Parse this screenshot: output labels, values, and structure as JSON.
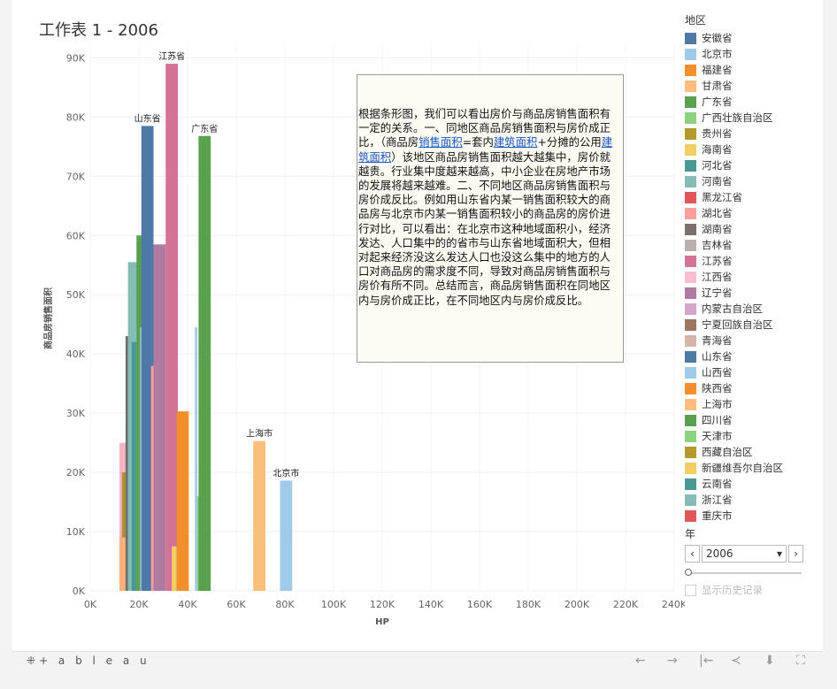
{
  "title": "工作表 1 - 2006",
  "chart_data": {
    "type": "bar",
    "xlabel": "HP",
    "ylabel": "商品房销售面积",
    "xlim": [
      0,
      240000
    ],
    "ylim": [
      0,
      92000
    ],
    "x_ticks": [
      "0K",
      "20K",
      "40K",
      "60K",
      "80K",
      "100K",
      "120K",
      "140K",
      "160K",
      "180K",
      "200K",
      "220K",
      "240K"
    ],
    "y_ticks": [
      "0K",
      "10K",
      "20K",
      "30K",
      "40K",
      "50K",
      "60K",
      "70K",
      "80K",
      "90K"
    ],
    "x_tick_values": [
      0,
      20000,
      40000,
      60000,
      80000,
      100000,
      120000,
      140000,
      160000,
      180000,
      200000,
      220000,
      240000
    ],
    "y_tick_values": [
      0,
      10000,
      20000,
      30000,
      40000,
      50000,
      60000,
      70000,
      80000,
      90000
    ],
    "grid": true,
    "bars": [
      {
        "name": "湖北省",
        "x0": 12000,
        "x1": 15000,
        "value": 25000,
        "color": "#f4b6c2"
      },
      {
        "name": "贵州省",
        "x0": 13000,
        "x1": 18000,
        "value": 20000,
        "color": "#b09235"
      },
      {
        "name": "陕西省",
        "x0": 12000,
        "x1": 17500,
        "value": 9000,
        "color": "#f9b07a"
      },
      {
        "name": "湖南省",
        "x0": 14500,
        "x1": 16000,
        "value": 43000,
        "color": "#6f6f6f"
      },
      {
        "name": "浙江省",
        "x0": 15500,
        "x1": 20500,
        "value": 55500,
        "color": "#86bcb6"
      },
      {
        "name": "广西壮族自治区",
        "x0": 17500,
        "x1": 19000,
        "value": 26000,
        "color": "#8cd17d"
      },
      {
        "name": "四川省",
        "x0": 19000,
        "x1": 22000,
        "value": 60000,
        "color": "#59a14f"
      },
      {
        "name": "河北省",
        "x0": 17000,
        "x1": 19000,
        "value": 42000,
        "color": "#499894"
      },
      {
        "name": "山西省",
        "x0": 20500,
        "x1": 23500,
        "value": 44500,
        "color": "#a0cbe8"
      },
      {
        "name": "山东省",
        "x0": 21000,
        "x1": 26000,
        "value": 78500,
        "color": "#4e79a7"
      },
      {
        "name": "湖北省",
        "x0": 25000,
        "x1": 28000,
        "value": 38000,
        "color": "#ff9d9a"
      },
      {
        "name": "辽宁省",
        "x0": 26000,
        "x1": 31000,
        "value": 58500,
        "color": "#b07aa1"
      },
      {
        "name": "江苏省",
        "x0": 31000,
        "x1": 36000,
        "value": 89000,
        "color": "#d37295"
      },
      {
        "name": "海南省",
        "x0": 33500,
        "x1": 35500,
        "value": 7500,
        "color": "#f1ce63"
      },
      {
        "name": "福建省",
        "x0": 35500,
        "x1": 40500,
        "value": 30300,
        "color": "#f28e2b"
      },
      {
        "name": "山西省",
        "x0": 43000,
        "x1": 44000,
        "value": 44500,
        "color": "#a0cbe8"
      },
      {
        "name": "天津市",
        "x0": 44000,
        "x1": 45500,
        "value": 16000,
        "color": "#8cd17d"
      },
      {
        "name": "广东省",
        "x0": 44500,
        "x1": 49500,
        "value": 76800,
        "color": "#59a14f"
      },
      {
        "name": "上海市",
        "x0": 67000,
        "x1": 72000,
        "value": 25300,
        "color": "#fabf7b"
      },
      {
        "name": "北京市",
        "x0": 78000,
        "x1": 83000,
        "value": 18600,
        "color": "#a0cbe8"
      }
    ],
    "labels": [
      {
        "text": "江苏省",
        "x": 33500,
        "y": 89000
      },
      {
        "text": "山东省",
        "x": 23500,
        "y": 78500
      },
      {
        "text": "广东省",
        "x": 47000,
        "y": 76800
      },
      {
        "text": "上海市",
        "x": 69500,
        "y": 25300
      },
      {
        "text": "北京市",
        "x": 80500,
        "y": 18600
      }
    ]
  },
  "annotation": {
    "p1": "根据条形图，我们可以看出房价与商品房销售面积有一定的关系。一、同地区商品房销售面积与房价成正比，（商品房",
    "link1": "销售面积",
    "p2": "=套内",
    "link2": "建筑面积",
    "p3": "+分摊的公用",
    "link3": "建筑面积",
    "p4": "）该地区商品房销售面积越大越集中，房价就越贵。行业集中度越来越高，中小企业在房地产市场的发展将越来越难。二、不同地区商品房销售面积与房价成反比。例如用山东省内某一销售面积较大的商品房与北京市内某一销售面积较小的商品房的房价进行对比，可以看出：在北京市这种地域面积小，经济发达、人口集中的的省市与山东省地域面积大，但相对起来经济没这么发达人口也没这么集中的地方的人口对商品房的需求度不同，导致对商品房销售面积与房价有所不同。总结而言，商品房销售面积在同地区内与房价成正比，在不同地区内与房价成反比。"
  },
  "legend": {
    "title": "地区",
    "items": [
      {
        "label": "安徽省",
        "color": "#4e79a7"
      },
      {
        "label": "北京市",
        "color": "#a0cbe8"
      },
      {
        "label": "福建省",
        "color": "#f28e2b"
      },
      {
        "label": "甘肃省",
        "color": "#ffbe7d"
      },
      {
        "label": "广东省",
        "color": "#59a14f"
      },
      {
        "label": "广西壮族自治区",
        "color": "#8cd17d"
      },
      {
        "label": "贵州省",
        "color": "#b6992d"
      },
      {
        "label": "海南省",
        "color": "#f1ce63"
      },
      {
        "label": "河北省",
        "color": "#499894"
      },
      {
        "label": "河南省",
        "color": "#86bcb6"
      },
      {
        "label": "黑龙江省",
        "color": "#e15759"
      },
      {
        "label": "湖北省",
        "color": "#ff9d9a"
      },
      {
        "label": "湖南省",
        "color": "#79706e"
      },
      {
        "label": "吉林省",
        "color": "#bab0ac"
      },
      {
        "label": "江苏省",
        "color": "#d37295"
      },
      {
        "label": "江西省",
        "color": "#fabfd2"
      },
      {
        "label": "辽宁省",
        "color": "#b07aa1"
      },
      {
        "label": "内蒙古自治区",
        "color": "#d4a6c8"
      },
      {
        "label": "宁夏回族自治区",
        "color": "#9d7660"
      },
      {
        "label": "青海省",
        "color": "#d7b5a6"
      },
      {
        "label": "山东省",
        "color": "#4e79a7"
      },
      {
        "label": "山西省",
        "color": "#a0cbe8"
      },
      {
        "label": "陕西省",
        "color": "#f28e2b"
      },
      {
        "label": "上海市",
        "color": "#ffbe7d"
      },
      {
        "label": "四川省",
        "color": "#59a14f"
      },
      {
        "label": "天津市",
        "color": "#8cd17d"
      },
      {
        "label": "西藏自治区",
        "color": "#b6992d"
      },
      {
        "label": "新疆维吾尔自治区",
        "color": "#f1ce63"
      },
      {
        "label": "云南省",
        "color": "#499894"
      },
      {
        "label": "浙江省",
        "color": "#86bcb6"
      },
      {
        "label": "重庆市",
        "color": "#e15759"
      }
    ]
  },
  "year_filter": {
    "title": "年",
    "value": "2006",
    "prev": "‹",
    "next": "›",
    "dropdown": "▾",
    "history_label": "显示历史记录"
  },
  "toolbar": {
    "logo_mark": "⁜",
    "logo_text": "+ a b l e a u",
    "undo": "←",
    "redo": "→",
    "revert": "|←",
    "share": "≺",
    "download": "⬇",
    "fullscreen": "⛶"
  }
}
